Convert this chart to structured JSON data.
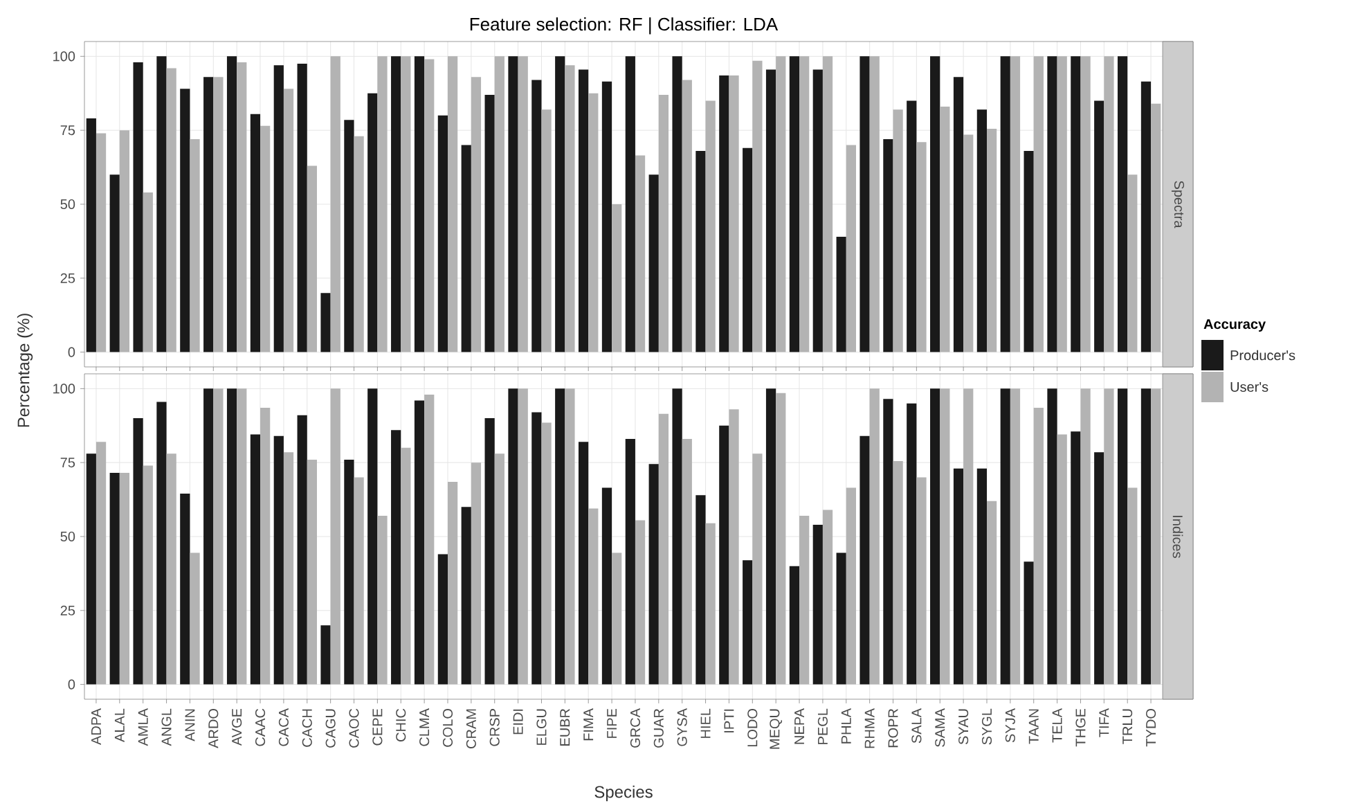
{
  "chart_data": [
    {
      "type": "bar",
      "title": "Feature selection: RF | Classifier: LDA",
      "annotations": [
        "Spectra"
      ],
      "ylabel": "Percentage (%)",
      "legend_title": "Accuracy",
      "legend": "right",
      "grid": true,
      "tick_labels": "y",
      "categories": [
        null,
        null,
        null,
        null,
        null,
        null,
        null,
        null,
        null,
        null,
        null,
        null,
        null,
        null,
        null,
        null,
        null,
        null,
        null,
        null,
        null,
        null,
        null,
        null,
        null,
        null,
        null,
        null,
        null,
        null,
        null,
        null,
        null,
        null,
        null,
        null,
        null,
        null,
        null,
        null,
        null,
        null,
        null,
        null,
        null,
        null
      ],
      "ylim": [
        -5,
        105
      ],
      "yticks": [
        0,
        25,
        50,
        75,
        100
      ],
      "series": [
        {
          "name": "Producer's",
          "color": "#1a1a1a",
          "values": [
            79,
            60,
            98,
            100,
            89,
            93,
            100,
            80.5,
            97,
            97.5,
            20,
            78.5,
            87.5,
            100,
            100,
            80,
            70,
            87,
            100,
            92,
            100,
            95.5,
            91.5,
            100,
            60,
            100,
            68,
            93.5,
            69,
            95.5,
            100,
            95.5,
            39,
            100,
            72,
            85,
            100,
            93,
            82,
            100,
            68,
            100,
            100,
            85,
            100,
            91.5
          ]
        },
        {
          "name": "User's",
          "color": "#b3b3b3",
          "values": [
            74,
            75,
            54,
            96,
            72,
            93,
            98,
            76.5,
            89,
            63,
            100,
            73,
            100,
            100,
            99,
            100,
            93,
            100,
            100,
            82,
            97,
            87.5,
            50,
            66.5,
            87,
            92,
            85,
            93.5,
            98.5,
            100,
            100,
            100,
            70,
            100,
            82,
            71,
            83,
            73.5,
            75.5,
            100,
            100,
            100,
            100,
            100,
            60,
            84
          ]
        }
      ]
    },
    {
      "type": "bar",
      "annotations": [
        "Indices"
      ],
      "xlabel": "Species",
      "grid": true,
      "categories": [
        "ADPA",
        "ALAL",
        "AMLA",
        "ANGL",
        "ANIN",
        "ARDO",
        "AVGE",
        "CAAC",
        "CACA",
        "CACH",
        "CAGU",
        "CAOC",
        "CEPE",
        "CHIC",
        "CLMA",
        "COLO",
        "CRAM",
        "CRSP",
        "EIDI",
        "ELGU",
        "EUBR",
        "FIMA",
        "FIPE",
        "GRCA",
        "GUAR",
        "GYSA",
        "HIEL",
        "IPTI",
        "LODO",
        "MEQU",
        "NEPA",
        "PEGL",
        "PHLA",
        "RHMA",
        "ROPR",
        "SALA",
        "SAMA",
        "SYAU",
        "SYGL",
        "SYJA",
        "TAAN",
        "TELA",
        "THGE",
        "TIFA",
        "TRLU",
        "TYDO"
      ],
      "ylim": [
        -5,
        105
      ],
      "yticks": [
        0,
        25,
        50,
        75,
        100
      ],
      "series": [
        {
          "color": "#1a1a1a",
          "values": [
            78,
            71.5,
            90,
            95.5,
            64.5,
            100,
            100,
            84.5,
            84,
            91,
            20,
            76,
            100,
            86,
            96,
            44,
            60,
            90,
            100,
            92,
            100,
            82,
            66.5,
            83,
            74.5,
            100,
            64,
            87.5,
            42,
            100,
            40,
            54,
            44.5,
            84,
            96.5,
            95,
            100,
            73,
            73,
            100,
            41.5,
            100,
            85.5,
            78.5,
            100,
            100
          ]
        },
        {
          "color": "#b3b3b3",
          "values": [
            82,
            71.5,
            74,
            78,
            44.5,
            100,
            100,
            93.5,
            78.5,
            76,
            100,
            70,
            57,
            80,
            98,
            68.5,
            75,
            78,
            100,
            88.5,
            100,
            59.5,
            44.5,
            55.5,
            91.5,
            83,
            54.5,
            93,
            78,
            98.5,
            57,
            59,
            66.5,
            100,
            75.5,
            70,
            100,
            100,
            62,
            100,
            93.5,
            84.5,
            100,
            100,
            66.5,
            100
          ]
        }
      ]
    }
  ]
}
